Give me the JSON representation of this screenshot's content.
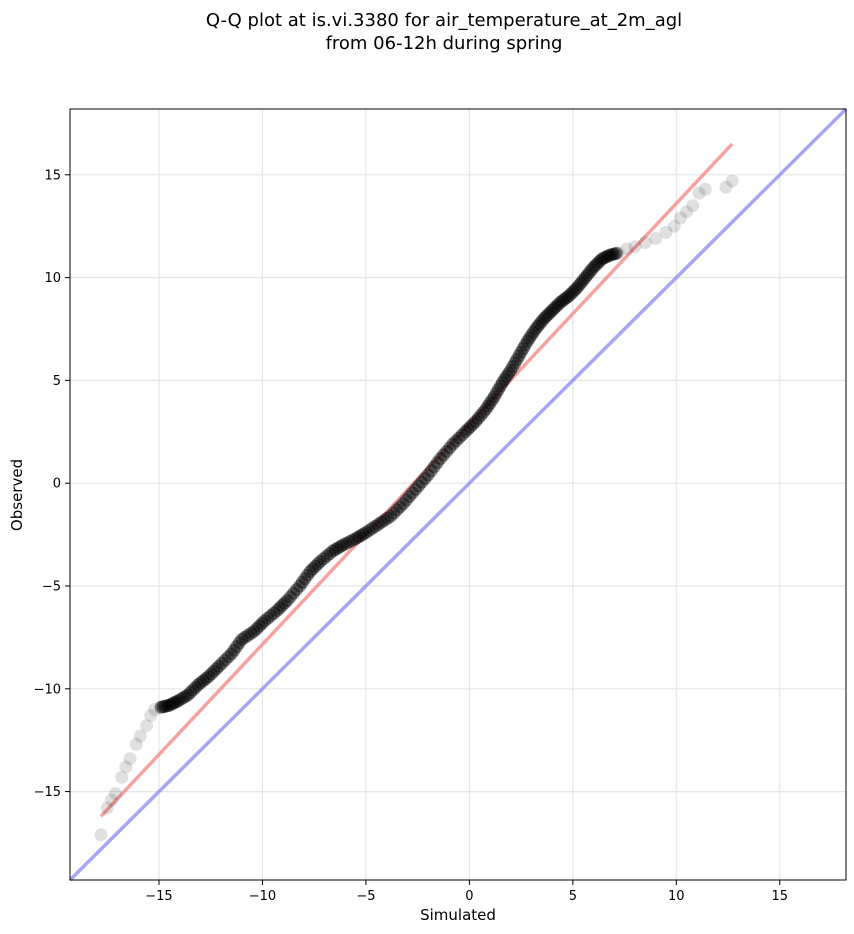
{
  "chart_data": {
    "type": "scatter",
    "title_line1": "Q-Q plot at is.vi.3380 for air_temperature_at_2m_agl",
    "title_line2": "from 06-12h during spring",
    "xlabel": "Simulated",
    "ylabel": "Observed",
    "xlim": [
      -19.3,
      18.2
    ],
    "ylim": [
      -19.3,
      18.2
    ],
    "xticks": [
      -15,
      -10,
      -5,
      0,
      5,
      10,
      15
    ],
    "yticks": [
      -15,
      -10,
      -5,
      0,
      5,
      10,
      15
    ],
    "xtick_labels": [
      "−15",
      "−10",
      "−5",
      "0",
      "5",
      "10",
      "15"
    ],
    "ytick_labels": [
      "−15",
      "−10",
      "−5",
      "0",
      "5",
      "10",
      "15"
    ],
    "grid": true,
    "colors": {
      "points": "#000000",
      "fit_line": "#f47a7a",
      "identity_line": "#8888ee"
    },
    "identity_line": {
      "x": [
        -19.3,
        18.2
      ],
      "y": [
        -19.3,
        18.2
      ]
    },
    "fit_line": {
      "x": [
        -17.8,
        12.7
      ],
      "y": [
        -16.2,
        16.5
      ]
    },
    "series": [
      {
        "x": [
          -17.8,
          -17.5,
          -17.3,
          -17.1,
          -16.8,
          -16.6,
          -16.4,
          -16.1,
          -15.9,
          -15.6,
          -15.4,
          -15.2,
          -14.9,
          -14.5,
          -14.1,
          -13.6,
          -13.1,
          -12.6,
          -12.1,
          -11.5,
          -11.0,
          -10.4,
          -9.9,
          -9.3,
          -8.8,
          -8.2,
          -7.7,
          -7.2,
          -6.6,
          -6.1,
          -5.5,
          -5.0,
          -4.4,
          -3.8,
          -3.2,
          -2.6,
          -2.0,
          -1.4,
          -0.8,
          -0.2,
          0.3,
          0.8,
          1.2,
          1.6,
          2.0,
          2.4,
          2.8,
          3.2,
          3.6,
          4.0,
          4.4,
          4.8,
          5.2,
          5.6,
          6.0,
          6.4,
          6.8,
          7.2,
          7.6,
          8.0,
          8.5,
          9.0,
          9.5,
          9.9,
          10.2,
          10.5,
          10.8,
          11.1,
          11.4,
          12.4,
          12.7
        ],
        "y": [
          -17.1,
          -15.8,
          -15.4,
          -15.1,
          -14.3,
          -13.8,
          -13.4,
          -12.7,
          -12.3,
          -11.8,
          -11.3,
          -11.0,
          -10.9,
          -10.8,
          -10.6,
          -10.3,
          -9.8,
          -9.4,
          -8.9,
          -8.3,
          -7.6,
          -7.2,
          -6.7,
          -6.2,
          -5.7,
          -5.0,
          -4.3,
          -3.8,
          -3.3,
          -3.0,
          -2.7,
          -2.4,
          -2.0,
          -1.6,
          -1.0,
          -0.3,
          0.4,
          1.2,
          1.9,
          2.5,
          3.0,
          3.6,
          4.2,
          4.9,
          5.5,
          6.2,
          6.9,
          7.5,
          8.0,
          8.4,
          8.8,
          9.1,
          9.5,
          10.0,
          10.5,
          10.9,
          11.1,
          11.2,
          11.4,
          11.5,
          11.7,
          11.9,
          12.2,
          12.5,
          12.9,
          13.2,
          13.5,
          14.1,
          14.3,
          14.4,
          14.7
        ]
      }
    ]
  }
}
